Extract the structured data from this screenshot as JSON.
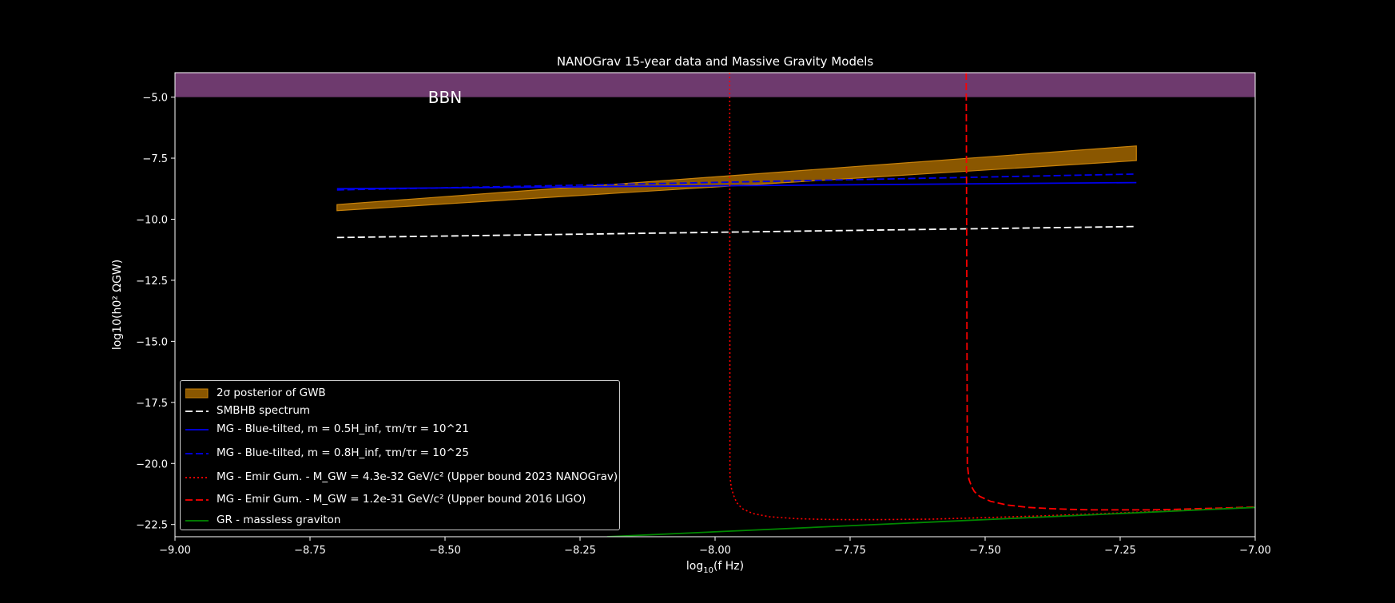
{
  "chart_data": {
    "type": "line",
    "title": "NANOGrav 15-year data and Massive Gravity Models",
    "xlabel": "log10(f Hz)",
    "ylabel": "log10(h0² ΩGW)",
    "xlim": [
      -9.0,
      -7.0
    ],
    "ylim": [
      -23.0,
      -4.0
    ],
    "xticks": [
      -9.0,
      -8.75,
      -8.5,
      -8.25,
      -8.0,
      -7.75,
      -7.5,
      -7.25,
      -7.0
    ],
    "xtick_labels": [
      "−9.00",
      "−8.75",
      "−8.50",
      "−8.25",
      "−8.00",
      "−7.75",
      "−7.50",
      "−7.25",
      "−7.00"
    ],
    "yticks": [
      -5.0,
      -7.5,
      -10.0,
      -12.5,
      -15.0,
      -17.5,
      -20.0,
      -22.5
    ],
    "ytick_labels": [
      "−5.0",
      "−7.5",
      "−10.0",
      "−12.5",
      "−15.0",
      "−17.5",
      "−20.0",
      "−22.5"
    ],
    "grid": false,
    "legend_position": "lower-left",
    "bbn_region": {
      "label": "BBN",
      "y_from": -5.0,
      "y_to": -4.0,
      "color": "#6e3a6e"
    },
    "band": {
      "name": "2σ posterior of GWB",
      "color": "#8a5700",
      "edge": "#c8820a",
      "x": [
        -8.7,
        -7.22
      ],
      "lower": [
        -9.65,
        -7.6
      ],
      "upper": [
        -9.4,
        -7.0
      ]
    },
    "series": [
      {
        "name": "SMBHB spectrum",
        "color": "#ffffff",
        "dash": "dashed",
        "x": [
          -8.7,
          -7.22
        ],
        "y": [
          -10.75,
          -10.3
        ]
      },
      {
        "name": "MG - Blue-tilted, m = 0.5H_inf, τm/τr = 10^21",
        "color": "#0000ee",
        "dash": "solid",
        "x": [
          -8.7,
          -7.22
        ],
        "y": [
          -8.75,
          -8.5
        ]
      },
      {
        "name": "MG - Blue-tilted, m = 0.8H_inf, τm/τr = 10^25",
        "color": "#0000ee",
        "dash": "dashed",
        "x": [
          -8.7,
          -7.22
        ],
        "y": [
          -8.8,
          -8.15
        ]
      },
      {
        "name": "MG - Emir Gum. - M_GW = 4.3e-32 GeV/c² (Upper bound 2023 NANOGrav)",
        "color": "#ff0000",
        "dash": "dotted",
        "x": [
          -7.973,
          -7.9725,
          -7.97,
          -7.965,
          -7.96,
          -7.95,
          -7.93,
          -7.9,
          -7.85,
          -7.8,
          -7.75,
          -7.7,
          -7.6,
          -7.5,
          -7.4,
          -7.3,
          -7.2,
          -7.1,
          -7.0
        ],
        "y": [
          -4.0,
          -20.5,
          -21.0,
          -21.35,
          -21.6,
          -21.85,
          -22.05,
          -22.18,
          -22.26,
          -22.29,
          -22.3,
          -22.3,
          -22.28,
          -22.22,
          -22.15,
          -22.07,
          -21.98,
          -21.89,
          -21.8
        ]
      },
      {
        "name": "MG - Emir Gum. - M_GW = 1.2e-31 GeV/c² (Upper bound 2016 LIGO)",
        "color": "#ff0000",
        "dash": "dashed",
        "x": [
          -7.535,
          -7.533,
          -7.53,
          -7.525,
          -7.52,
          -7.51,
          -7.49,
          -7.46,
          -7.42,
          -7.38,
          -7.34,
          -7.3,
          -7.25,
          -7.2,
          -7.15,
          -7.1,
          -7.05,
          -7.0
        ],
        "y": [
          -4.0,
          -20.0,
          -20.65,
          -20.95,
          -21.15,
          -21.35,
          -21.55,
          -21.7,
          -21.8,
          -21.85,
          -21.88,
          -21.9,
          -21.9,
          -21.9,
          -21.88,
          -21.85,
          -21.82,
          -21.78
        ]
      },
      {
        "name": "GR - massless graviton",
        "color": "#008800",
        "dash": "solid",
        "x": [
          -8.2,
          -7.0
        ],
        "y": [
          -23.0,
          -21.8
        ]
      }
    ],
    "legend": {
      "entries": [
        {
          "label": "2σ posterior of GWB",
          "kind": "patch",
          "color": "#8a5700"
        },
        {
          "label": "SMBHB spectrum",
          "kind": "line",
          "color": "#ffffff",
          "dash": "dashed"
        },
        {
          "label": "MG - Blue-tilted, m = 0.5H_inf, τm/τr = 10^21",
          "kind": "line",
          "color": "#0000ee",
          "dash": "solid"
        },
        {
          "label": "MG - Blue-tilted, m = 0.8H_inf, τm/τr = 10^25",
          "kind": "line",
          "color": "#0000ee",
          "dash": "dashed"
        },
        {
          "label": "MG - Emir Gum. - M_GW = 4.3e-32 GeV/c² (Upper bound 2023 NANOGrav)",
          "kind": "line",
          "color": "#ff0000",
          "dash": "dotted"
        },
        {
          "label": "MG - Emir Gum. - M_GW = 1.2e-31 GeV/c² (Upper bound 2016 LIGO)",
          "kind": "line",
          "color": "#ff0000",
          "dash": "dashed"
        },
        {
          "label": "GR - massless graviton",
          "kind": "line",
          "color": "#008800",
          "dash": "solid"
        }
      ]
    }
  }
}
